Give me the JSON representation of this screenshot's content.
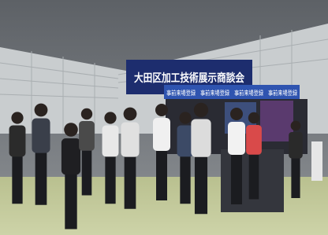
{
  "scene": {
    "banner": {
      "title": "大田区加工技術展示商談会"
    },
    "registration_signs": [
      "事前来場登録",
      "事前来場登録",
      "事前来場登録",
      "事前来場登録"
    ]
  }
}
